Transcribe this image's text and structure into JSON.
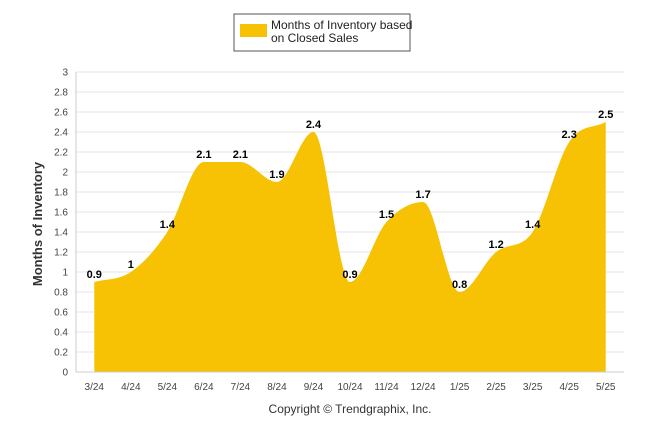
{
  "chart_data": {
    "type": "area",
    "categories": [
      "3/24",
      "4/24",
      "5/24",
      "6/24",
      "7/24",
      "8/24",
      "9/24",
      "10/24",
      "11/24",
      "12/24",
      "1/25",
      "2/25",
      "3/25",
      "4/25",
      "5/25"
    ],
    "series": [
      {
        "name": "Months of Inventory based on Closed Sales",
        "values": [
          0.9,
          1,
          1.4,
          2.1,
          2.1,
          1.9,
          2.4,
          0.9,
          1.5,
          1.7,
          0.8,
          1.2,
          1.4,
          2.3,
          2.5
        ],
        "labels": [
          "0.9",
          "1",
          "1.4",
          "2.1",
          "2.1",
          "1.9",
          "2.4",
          "0.9",
          "1.5",
          "1.7",
          "0.8",
          "1.2",
          "1.4",
          "2.3",
          "2.5"
        ],
        "color": "#f7c204"
      }
    ],
    "legend": {
      "line1": "Months of Inventory based",
      "line2": "on Closed Sales",
      "position": "top-center"
    },
    "ylabel": "Months of Inventory",
    "xlabel": "",
    "ylim": [
      0,
      3
    ],
    "yticks": [
      0,
      0.2,
      0.4,
      0.6,
      0.8,
      1,
      1.2,
      1.4,
      1.6,
      1.8,
      2,
      2.2,
      2.4,
      2.6,
      2.8,
      3
    ],
    "ytick_labels": [
      "0",
      "0.2",
      "0.4",
      "0.6",
      "0.8",
      "1",
      "1.2",
      "1.4",
      "1.6",
      "1.8",
      "2",
      "2.2",
      "2.4",
      "2.6",
      "2.8",
      "3"
    ],
    "grid": true
  },
  "footer": {
    "copyright": "Copyright © Trendgraphix, Inc."
  }
}
